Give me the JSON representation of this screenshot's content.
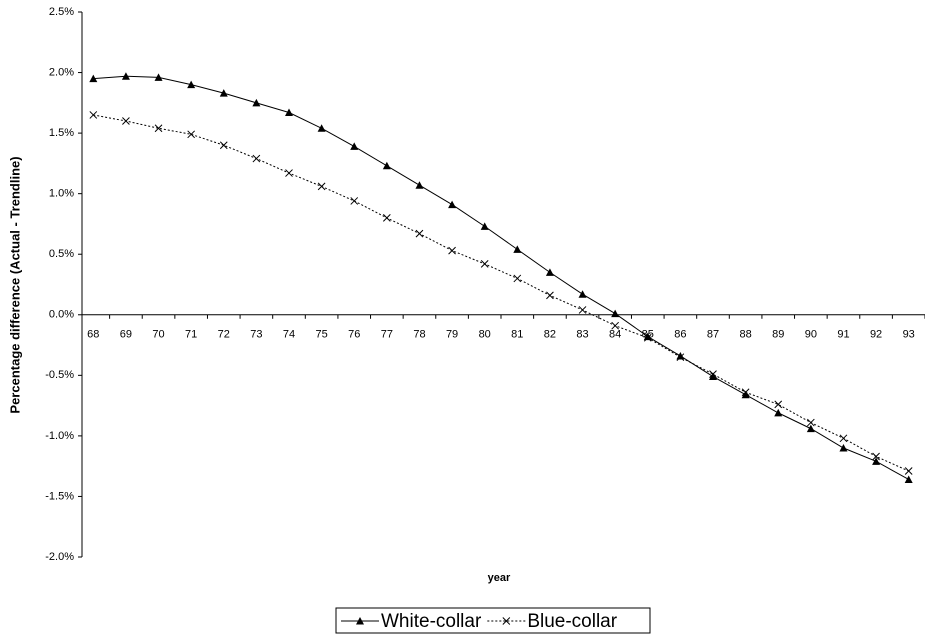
{
  "chart_data": {
    "type": "line",
    "y_label": "Percentage difference (Actual - Trendline)",
    "x_label": "year",
    "categories": [
      "68",
      "69",
      "70",
      "71",
      "72",
      "73",
      "74",
      "75",
      "76",
      "77",
      "78",
      "79",
      "80",
      "81",
      "82",
      "83",
      "84",
      "85",
      "86",
      "87",
      "88",
      "89",
      "90",
      "91",
      "92",
      "93"
    ],
    "series": [
      {
        "name": "White-collar",
        "color": "#000000",
        "marker": "triangle",
        "dash": "solid",
        "values": [
          1.95,
          1.97,
          1.96,
          1.9,
          1.83,
          1.75,
          1.67,
          1.54,
          1.39,
          1.23,
          1.07,
          0.91,
          0.73,
          0.54,
          0.35,
          0.17,
          0.01,
          -0.18,
          -0.34,
          -0.51,
          -0.66,
          -0.81,
          -0.94,
          -1.1,
          -1.21,
          -1.36
        ]
      },
      {
        "name": "Blue-collar",
        "color": "#000000",
        "marker": "x",
        "dash": "dotted",
        "values": [
          1.65,
          1.6,
          1.54,
          1.49,
          1.4,
          1.29,
          1.17,
          1.06,
          0.94,
          0.8,
          0.67,
          0.53,
          0.42,
          0.3,
          0.16,
          0.04,
          -0.09,
          -0.19,
          -0.35,
          -0.49,
          -0.64,
          -0.74,
          -0.89,
          -1.02,
          -1.17,
          -1.29
        ]
      }
    ],
    "ylim": [
      -2.0,
      2.5
    ],
    "yticks": [
      {
        "value": -2.0,
        "label": "-2.0%"
      },
      {
        "value": -1.5,
        "label": "-1.5%"
      },
      {
        "value": -1.0,
        "label": "-1.0%"
      },
      {
        "value": -0.5,
        "label": "-0.5%"
      },
      {
        "value": 0.0,
        "label": "0.0%"
      },
      {
        "value": 0.5,
        "label": "0.5%"
      },
      {
        "value": 1.0,
        "label": "1.0%"
      },
      {
        "value": 1.5,
        "label": "1.5%"
      },
      {
        "value": 2.0,
        "label": "2.0%"
      },
      {
        "value": 2.5,
        "label": "2.5%"
      }
    ],
    "grid": false,
    "legend": "bottom"
  }
}
